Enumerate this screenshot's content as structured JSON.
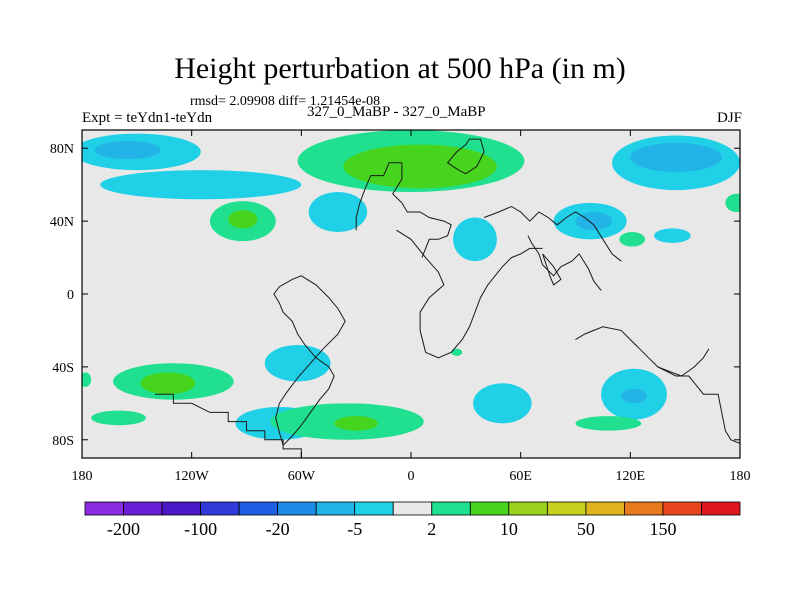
{
  "chart_data": {
    "type": "heatmap",
    "title": "Height perturbation at 500 hPa (in m)",
    "stats_text": "rmsd= 2.09908 diff= 1.21454e-08",
    "left_label": "Expt = teYdn1-teYdn",
    "center_label": "327_0_MaBP - 327_0_MaBP",
    "right_label": "DJF",
    "xlim": [
      -180,
      180
    ],
    "ylim": [
      -90,
      90
    ],
    "x_ticks": [
      {
        "value": -180,
        "label": "180"
      },
      {
        "value": -120,
        "label": "120W"
      },
      {
        "value": -60,
        "label": "60W"
      },
      {
        "value": 0,
        "label": "0"
      },
      {
        "value": 60,
        "label": "60E"
      },
      {
        "value": 120,
        "label": "120E"
      },
      {
        "value": 180,
        "label": "180"
      }
    ],
    "y_ticks": [
      {
        "value": 80,
        "label": "80N"
      },
      {
        "value": 40,
        "label": "40N"
      },
      {
        "value": 0,
        "label": "0"
      },
      {
        "value": -40,
        "label": "40S"
      },
      {
        "value": -80,
        "label": "80S"
      }
    ],
    "colorbar": {
      "colors": [
        "#8b2be2",
        "#6a1fd6",
        "#4b18c8",
        "#2f3ad9",
        "#1f5fe6",
        "#1e8ce6",
        "#22b4e6",
        "#20d0e6",
        "#e8e8e8",
        "#20e090",
        "#46d41e",
        "#9ad21e",
        "#c8d21e",
        "#e0b41e",
        "#e87a1e",
        "#e8461e",
        "#e0161e"
      ],
      "labels": [
        "-200",
        "-100",
        "-20",
        "-5",
        "2",
        "10",
        "50",
        "150"
      ]
    },
    "regions": [
      {
        "name": "north-pacific-anomaly",
        "color": "#20d0e6",
        "lon": -150,
        "lat": 78,
        "rlon": 35,
        "rlat": 10
      },
      {
        "name": "north-pacific-core",
        "color": "#22b4e6",
        "lon": -155,
        "lat": 79,
        "rlon": 18,
        "rlat": 5
      },
      {
        "name": "north-america-band",
        "color": "#20d0e6",
        "lon": -115,
        "lat": 60,
        "rlon": 55,
        "rlat": 8
      },
      {
        "name": "arctic-positive",
        "color": "#20e090",
        "lon": 0,
        "lat": 73,
        "rlon": 62,
        "rlat": 17
      },
      {
        "name": "arctic-positive-core",
        "color": "#46d41e",
        "lon": 5,
        "lat": 70,
        "rlon": 42,
        "rlat": 12
      },
      {
        "name": "west-atlantic-negative",
        "color": "#20d0e6",
        "lon": -40,
        "lat": 45,
        "rlon": 16,
        "rlat": 11
      },
      {
        "name": "north-atlantic-positive",
        "color": "#20e090",
        "lon": -92,
        "lat": 40,
        "rlon": 18,
        "rlat": 11
      },
      {
        "name": "north-atlantic-positive-core",
        "color": "#46d41e",
        "lon": -92,
        "lat": 41,
        "rlon": 8,
        "rlat": 5
      },
      {
        "name": "europe-negative",
        "color": "#20d0e6",
        "lon": 35,
        "lat": 30,
        "rlon": 12,
        "rlat": 12
      },
      {
        "name": "siberia-negative",
        "color": "#20d0e6",
        "lon": 145,
        "lat": 72,
        "rlon": 35,
        "rlat": 15
      },
      {
        "name": "siberia-negative-core",
        "color": "#22b4e6",
        "lon": 145,
        "lat": 75,
        "rlon": 25,
        "rlat": 8
      },
      {
        "name": "asia-negative",
        "color": "#20d0e6",
        "lon": 98,
        "lat": 40,
        "rlon": 20,
        "rlat": 10
      },
      {
        "name": "asia-negative-core",
        "color": "#22b4e6",
        "lon": 100,
        "lat": 40,
        "rlon": 10,
        "rlat": 5
      },
      {
        "name": "pacific-small-positive",
        "color": "#20e090",
        "lon": 121,
        "lat": 30,
        "rlon": 7,
        "rlat": 4
      },
      {
        "name": "east-asia-negative",
        "color": "#20d0e6",
        "lon": 143,
        "lat": 32,
        "rlon": 10,
        "rlat": 4
      },
      {
        "name": "east-pacific-edge",
        "color": "#20e090",
        "lon": 178,
        "lat": 50,
        "rlon": 6,
        "rlat": 5
      },
      {
        "name": "south-pacific-positive",
        "color": "#20e090",
        "lon": -130,
        "lat": -48,
        "rlon": 33,
        "rlat": 10
      },
      {
        "name": "south-pacific-positive-core",
        "color": "#46d41e",
        "lon": -133,
        "lat": -49,
        "rlon": 15,
        "rlat": 6
      },
      {
        "name": "south-america-negative",
        "color": "#20d0e6",
        "lon": -62,
        "lat": -38,
        "rlon": 18,
        "rlat": 10
      },
      {
        "name": "south-atlantic-negative",
        "color": "#20d0e6",
        "lon": -72,
        "lat": -71,
        "rlon": 24,
        "rlat": 9
      },
      {
        "name": "south-atlantic-band",
        "color": "#20e090",
        "lon": -35,
        "lat": -70,
        "rlon": 42,
        "rlat": 10
      },
      {
        "name": "south-atlantic-band-core",
        "color": "#46d41e",
        "lon": -30,
        "lat": -71,
        "rlon": 12,
        "rlat": 4
      },
      {
        "name": "southern-ocean-positive",
        "color": "#20e090",
        "lon": -160,
        "lat": -68,
        "rlon": 15,
        "rlat": 4
      },
      {
        "name": "south-africa-negative",
        "color": "#20d0e6",
        "lon": 50,
        "lat": -60,
        "rlon": 16,
        "rlat": 11
      },
      {
        "name": "indian-ocean-negative",
        "color": "#20d0e6",
        "lon": 122,
        "lat": -55,
        "rlon": 18,
        "rlat": 14
      },
      {
        "name": "indian-ocean-negative-core",
        "color": "#22b4e6",
        "lon": 122,
        "lat": -56,
        "rlon": 7,
        "rlat": 4
      },
      {
        "name": "antarctic-positive",
        "color": "#20e090",
        "lon": 108,
        "lat": -71,
        "rlon": 18,
        "rlat": 4
      },
      {
        "name": "south-atlantic-small-positive",
        "color": "#20e090",
        "lon": 25,
        "lat": -32,
        "rlon": 3,
        "rlat": 2
      },
      {
        "name": "west-edge-positive",
        "color": "#20e090",
        "lon": -178,
        "lat": -47,
        "rlon": 3,
        "rlat": 4
      }
    ],
    "coastlines": [
      [
        [
          -60,
          -90
        ],
        [
          -60,
          -85
        ],
        [
          -70,
          -85
        ],
        [
          -70,
          -80
        ],
        [
          -80,
          -80
        ],
        [
          -80,
          -75
        ],
        [
          -90,
          -75
        ],
        [
          -90,
          -70
        ],
        [
          -100,
          -70
        ],
        [
          -100,
          -65
        ],
        [
          -110,
          -65
        ],
        [
          -120,
          -60
        ],
        [
          -130,
          -60
        ],
        [
          -130,
          -55
        ],
        [
          -140,
          -55
        ]
      ],
      [
        [
          -70,
          -83
        ],
        [
          -65,
          -78
        ],
        [
          -60,
          -72
        ],
        [
          -55,
          -65
        ],
        [
          -50,
          -58
        ],
        [
          -45,
          -52
        ],
        [
          -42,
          -45
        ],
        [
          -45,
          -40
        ],
        [
          -52,
          -35
        ],
        [
          -58,
          -28
        ],
        [
          -62,
          -22
        ],
        [
          -65,
          -15
        ],
        [
          -70,
          -10
        ],
        [
          -72,
          -5
        ],
        [
          -75,
          0
        ],
        [
          -72,
          4
        ],
        [
          -65,
          8
        ],
        [
          -60,
          10
        ],
        [
          -52,
          5
        ],
        [
          -45,
          -2
        ],
        [
          -40,
          -8
        ],
        [
          -36,
          -15
        ],
        [
          -40,
          -22
        ],
        [
          -48,
          -30
        ],
        [
          -55,
          -38
        ],
        [
          -62,
          -46
        ],
        [
          -68,
          -54
        ],
        [
          -72,
          -60
        ],
        [
          -74,
          -68
        ],
        [
          -72,
          -76
        ],
        [
          -70,
          -83
        ]
      ],
      [
        [
          -30,
          35
        ],
        [
          -30,
          42
        ],
        [
          -28,
          50
        ],
        [
          -25,
          58
        ],
        [
          -22,
          65
        ],
        [
          -15,
          65
        ],
        [
          -12,
          72
        ],
        [
          -5,
          72
        ],
        [
          -5,
          63
        ],
        [
          -10,
          55
        ],
        [
          -5,
          50
        ],
        [
          -2,
          45
        ],
        [
          5,
          45
        ],
        [
          10,
          42
        ],
        [
          18,
          40
        ],
        [
          22,
          38
        ],
        [
          20,
          32
        ],
        [
          15,
          30
        ],
        [
          10,
          30
        ],
        [
          8,
          25
        ],
        [
          6,
          20
        ]
      ],
      [
        [
          26,
          68
        ],
        [
          20,
          72
        ],
        [
          25,
          78
        ],
        [
          30,
          82
        ],
        [
          32,
          85
        ],
        [
          38,
          85
        ],
        [
          40,
          78
        ],
        [
          36,
          70
        ],
        [
          30,
          66
        ],
        [
          26,
          68
        ]
      ],
      [
        [
          -8,
          35
        ],
        [
          0,
          30
        ],
        [
          8,
          20
        ],
        [
          15,
          12
        ],
        [
          18,
          5
        ],
        [
          10,
          -2
        ],
        [
          5,
          -10
        ],
        [
          5,
          -20
        ],
        [
          8,
          -32
        ],
        [
          15,
          -35
        ],
        [
          22,
          -32
        ],
        [
          28,
          -25
        ],
        [
          32,
          -18
        ],
        [
          35,
          -10
        ],
        [
          38,
          -2
        ],
        [
          42,
          5
        ],
        [
          46,
          10
        ],
        [
          50,
          15
        ],
        [
          55,
          20
        ],
        [
          60,
          22
        ],
        [
          65,
          25
        ],
        [
          72,
          25
        ]
      ],
      [
        [
          40,
          42
        ],
        [
          48,
          45
        ],
        [
          55,
          48
        ],
        [
          60,
          45
        ],
        [
          65,
          40
        ],
        [
          70,
          45
        ],
        [
          75,
          42
        ],
        [
          80,
          38
        ],
        [
          85,
          42
        ],
        [
          90,
          45
        ],
        [
          95,
          42
        ],
        [
          100,
          38
        ],
        [
          105,
          30
        ],
        [
          110,
          22
        ],
        [
          115,
          18
        ]
      ],
      [
        [
          64,
          32
        ],
        [
          66,
          28
        ],
        [
          70,
          22
        ],
        [
          72,
          16
        ],
        [
          78,
          10
        ],
        [
          82,
          15
        ],
        [
          88,
          18
        ],
        [
          92,
          22
        ],
        [
          97,
          14
        ],
        [
          100,
          7
        ],
        [
          104,
          2
        ]
      ],
      [
        [
          72,
          22
        ],
        [
          78,
          15
        ],
        [
          82,
          8
        ],
        [
          78,
          5
        ],
        [
          76,
          10
        ],
        [
          72,
          22
        ]
      ],
      [
        [
          90,
          -25
        ],
        [
          95,
          -22
        ],
        [
          100,
          -20
        ],
        [
          105,
          -18
        ],
        [
          115,
          -20
        ],
        [
          120,
          -25
        ],
        [
          125,
          -30
        ],
        [
          130,
          -35
        ],
        [
          135,
          -40
        ],
        [
          140,
          -42
        ],
        [
          148,
          -45
        ],
        [
          155,
          -40
        ],
        [
          160,
          -35
        ],
        [
          163,
          -30
        ]
      ],
      [
        [
          135,
          -40
        ],
        [
          145,
          -45
        ],
        [
          152,
          -45
        ],
        [
          160,
          -55
        ],
        [
          168,
          -55
        ],
        [
          170,
          -65
        ],
        [
          172,
          -75
        ],
        [
          175,
          -80
        ],
        [
          180,
          -82
        ]
      ]
    ]
  }
}
